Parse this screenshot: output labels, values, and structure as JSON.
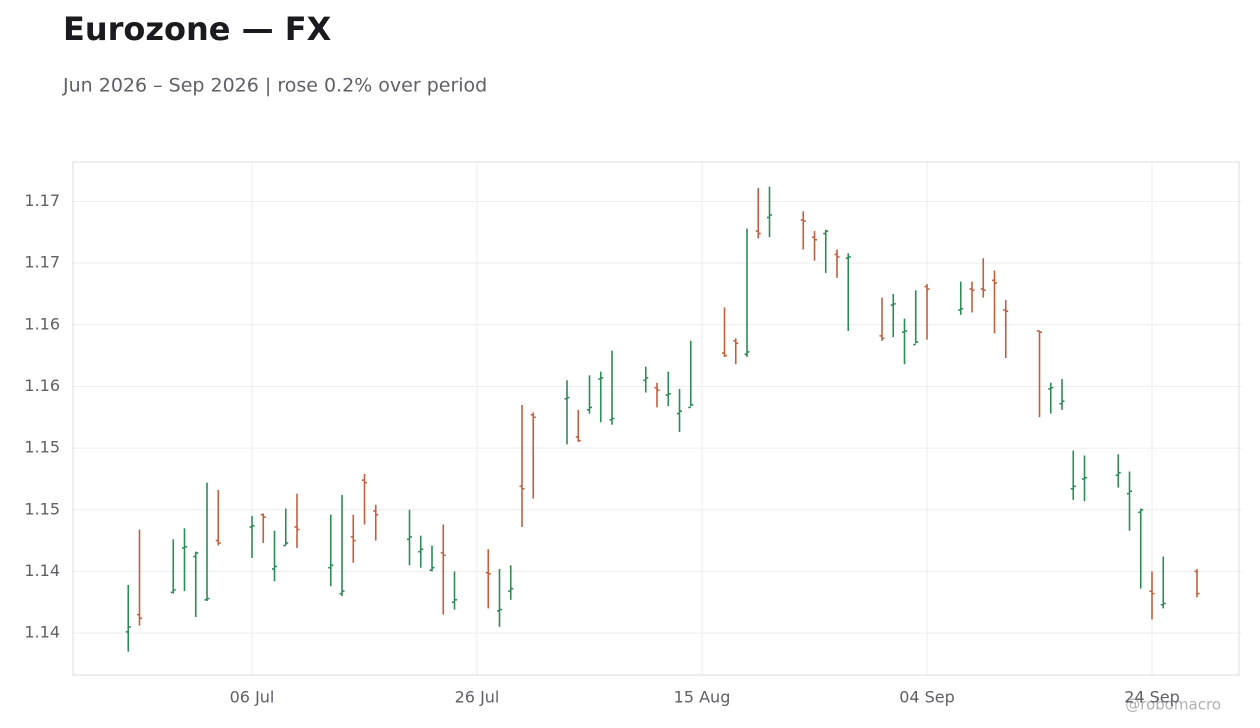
{
  "chart_data": {
    "type": "ohlc",
    "title": "Eurozone — FX",
    "subtitle": "Jun 2026 – Sep 2026 | rose 0.2% over period",
    "watermark": "@robomacro",
    "up_color": "#2e8b57",
    "down_color": "#c0603f",
    "grid": true,
    "x": [
      "2026-06-25",
      "2026-06-26",
      "2026-06-29",
      "2026-06-30",
      "2026-07-01",
      "2026-07-02",
      "2026-07-03",
      "2026-07-06",
      "2026-07-07",
      "2026-07-08",
      "2026-07-09",
      "2026-07-10",
      "2026-07-13",
      "2026-07-14",
      "2026-07-15",
      "2026-07-16",
      "2026-07-17",
      "2026-07-20",
      "2026-07-21",
      "2026-07-22",
      "2026-07-23",
      "2026-07-24",
      "2026-07-27",
      "2026-07-28",
      "2026-07-29",
      "2026-07-30",
      "2026-07-31",
      "2026-08-03",
      "2026-08-04",
      "2026-08-05",
      "2026-08-06",
      "2026-08-07",
      "2026-08-10",
      "2026-08-11",
      "2026-08-12",
      "2026-08-13",
      "2026-08-14",
      "2026-08-17",
      "2026-08-18",
      "2026-08-19",
      "2026-08-20",
      "2026-08-21",
      "2026-08-24",
      "2026-08-25",
      "2026-08-26",
      "2026-08-27",
      "2026-08-28",
      "2026-08-31",
      "2026-09-01",
      "2026-09-02",
      "2026-09-03",
      "2026-09-04",
      "2026-09-07",
      "2026-09-08",
      "2026-09-09",
      "2026-09-10",
      "2026-09-11",
      "2026-09-14",
      "2026-09-15",
      "2026-09-16",
      "2026-09-17",
      "2026-09-18",
      "2026-09-21",
      "2026-09-22",
      "2026-09-23",
      "2026-09-24",
      "2026-09-25",
      "2026-09-28"
    ],
    "open": [
      1.1376,
      1.139,
      1.1408,
      1.1444,
      1.1437,
      1.1402,
      1.145,
      1.1461,
      1.1471,
      1.1427,
      1.1446,
      1.1461,
      1.1428,
      1.1407,
      1.1453,
      1.1499,
      1.1474,
      1.1451,
      1.1441,
      1.1426,
      1.144,
      1.14,
      1.1424,
      1.1393,
      1.1409,
      1.1494,
      1.1552,
      1.1565,
      1.1534,
      1.1556,
      1.1581,
      1.1548,
      1.158,
      1.1574,
      1.1568,
      1.1553,
      1.1558,
      1.1602,
      1.1612,
      1.1601,
      1.1701,
      1.1712,
      1.171,
      1.1696,
      1.1699,
      1.1682,
      1.1679,
      1.1616,
      1.1641,
      1.1619,
      1.1609,
      1.1656,
      1.1637,
      1.1654,
      1.1654,
      1.1661,
      1.1637,
      1.162,
      1.1573,
      1.1561,
      1.1492,
      1.15,
      1.1503,
      1.1488,
      1.1473,
      1.1409,
      1.1398,
      1.1425
    ],
    "high": [
      1.1414,
      1.1459,
      1.1451,
      1.146,
      1.1441,
      1.1497,
      1.1491,
      1.147,
      1.1472,
      1.1458,
      1.1476,
      1.1488,
      1.1471,
      1.1487,
      1.1471,
      1.1504,
      1.1479,
      1.1475,
      1.1454,
      1.1446,
      1.1463,
      1.1425,
      1.1443,
      1.1427,
      1.143,
      1.156,
      1.1554,
      1.158,
      1.1556,
      1.1584,
      1.1587,
      1.1604,
      1.1591,
      1.1578,
      1.1587,
      1.1573,
      1.1612,
      1.1639,
      1.1614,
      1.1703,
      1.1736,
      1.1737,
      1.1717,
      1.1701,
      1.1702,
      1.1686,
      1.1683,
      1.1647,
      1.165,
      1.163,
      1.1653,
      1.1658,
      1.166,
      1.166,
      1.1679,
      1.1669,
      1.1645,
      1.162,
      1.1578,
      1.1581,
      1.1523,
      1.1519,
      1.152,
      1.1506,
      1.1476,
      1.1425,
      1.1437,
      1.1427
    ],
    "low": [
      1.136,
      1.1381,
      1.1407,
      1.1409,
      1.1388,
      1.1401,
      1.1446,
      1.1436,
      1.1448,
      1.1417,
      1.1446,
      1.1444,
      1.1413,
      1.1405,
      1.1432,
      1.1463,
      1.145,
      1.143,
      1.1428,
      1.1425,
      1.139,
      1.1394,
      1.1395,
      1.138,
      1.1402,
      1.1461,
      1.1484,
      1.1528,
      1.153,
      1.1553,
      1.1546,
      1.1544,
      1.157,
      1.1558,
      1.1559,
      1.1538,
      1.1559,
      1.1599,
      1.1593,
      1.1599,
      1.1695,
      1.1696,
      1.1686,
      1.1677,
      1.1667,
      1.1663,
      1.162,
      1.1612,
      1.1615,
      1.1593,
      1.161,
      1.1613,
      1.1633,
      1.1635,
      1.1647,
      1.1618,
      1.1598,
      1.155,
      1.1553,
      1.1556,
      1.1483,
      1.1482,
      1.1493,
      1.1458,
      1.1411,
      1.1386,
      1.1395,
      1.1404
    ],
    "close": [
      1.138,
      1.1387,
      1.141,
      1.1445,
      1.144,
      1.1403,
      1.1448,
      1.1462,
      1.1469,
      1.1429,
      1.1448,
      1.1459,
      1.143,
      1.1409,
      1.145,
      1.1497,
      1.1471,
      1.1453,
      1.1443,
      1.1428,
      1.1438,
      1.1402,
      1.1423,
      1.1394,
      1.1411,
      1.1492,
      1.155,
      1.1566,
      1.1531,
      1.1558,
      1.1582,
      1.1549,
      1.1582,
      1.1572,
      1.1569,
      1.1555,
      1.156,
      1.16,
      1.161,
      1.1603,
      1.1699,
      1.1714,
      1.1709,
      1.1694,
      1.1701,
      1.168,
      1.168,
      1.1614,
      1.1642,
      1.162,
      1.1611,
      1.1654,
      1.1638,
      1.1653,
      1.1653,
      1.1659,
      1.1636,
      1.1619,
      1.1574,
      1.1563,
      1.1494,
      1.1501,
      1.1505,
      1.149,
      1.1475,
      1.1407,
      1.1399,
      1.1407
    ],
    "xlim": [
      "2026-06-20",
      "2026-10-02"
    ],
    "xticks": [
      {
        "value": "2026-07-06",
        "label": "06 Jul"
      },
      {
        "value": "2026-07-26",
        "label": "26 Jul"
      },
      {
        "value": "2026-08-15",
        "label": "15 Aug"
      },
      {
        "value": "2026-09-04",
        "label": "04 Sep"
      },
      {
        "value": "2026-09-24",
        "label": "24 Sep"
      }
    ],
    "ylim": [
      1.1341,
      1.1757
    ],
    "yticks": [
      {
        "value": 1.1375,
        "label": "1.14"
      },
      {
        "value": 1.1425,
        "label": "1.14"
      },
      {
        "value": 1.1475,
        "label": "1.15"
      },
      {
        "value": 1.1525,
        "label": "1.15"
      },
      {
        "value": 1.1575,
        "label": "1.16"
      },
      {
        "value": 1.1625,
        "label": "1.16"
      },
      {
        "value": 1.1675,
        "label": "1.17"
      },
      {
        "value": 1.1725,
        "label": "1.17"
      }
    ]
  }
}
